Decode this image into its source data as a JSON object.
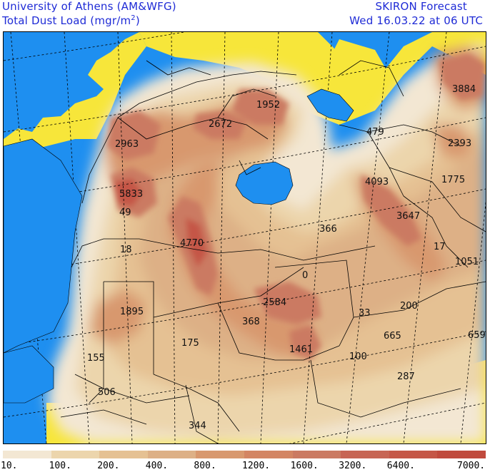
{
  "header": {
    "line1_left": "University of Athens (AM&WFG)",
    "line2_left_prefix": "Total Dust Load (mgr/m",
    "line2_left_sup": "2",
    "line2_left_suffix": ")",
    "line1_right": "SKIRON Forecast",
    "line2_right": "Wed 16.03.22 at 06 UTC"
  },
  "colors": {
    "sea": "#1e8ff0",
    "land_nodata": "#f7e63a",
    "border": "#000000",
    "grid": "#000000"
  },
  "legend": {
    "colors": [
      "#f3e7d3",
      "#ecd5ac",
      "#e5c193",
      "#ddb086",
      "#d8986e",
      "#d38563",
      "#cb7a62",
      "#c76554",
      "#c55747",
      "#c04a3d"
    ],
    "labels": [
      "10.",
      "100.",
      "200.",
      "400.",
      "800.",
      "1200.",
      "1600.",
      "3200.",
      "6400.",
      "7000."
    ]
  },
  "map_labels": [
    {
      "id": "v3884",
      "text": "3884"
    },
    {
      "id": "v1952",
      "text": "1952"
    },
    {
      "id": "v2672",
      "text": "2672"
    },
    {
      "id": "v479",
      "text": "479"
    },
    {
      "id": "v2393",
      "text": "2393"
    },
    {
      "id": "v2963",
      "text": "2963"
    },
    {
      "id": "v4093",
      "text": "4093"
    },
    {
      "id": "v1775",
      "text": "1775"
    },
    {
      "id": "v5833",
      "text": "5833"
    },
    {
      "id": "v49",
      "text": "49"
    },
    {
      "id": "v3647",
      "text": "3647"
    },
    {
      "id": "v366",
      "text": "366"
    },
    {
      "id": "v4770",
      "text": "4770"
    },
    {
      "id": "v17",
      "text": "17"
    },
    {
      "id": "v18",
      "text": "18"
    },
    {
      "id": "v1051",
      "text": "1051"
    },
    {
      "id": "v0",
      "text": "0"
    },
    {
      "id": "v2584",
      "text": "2584"
    },
    {
      "id": "v200",
      "text": "200"
    },
    {
      "id": "v1895",
      "text": "1895"
    },
    {
      "id": "v33",
      "text": "33"
    },
    {
      "id": "v368",
      "text": "368"
    },
    {
      "id": "v659",
      "text": "659"
    },
    {
      "id": "v665",
      "text": "665"
    },
    {
      "id": "v175",
      "text": "175"
    },
    {
      "id": "v1461",
      "text": "1461"
    },
    {
      "id": "v155",
      "text": "155"
    },
    {
      "id": "v100",
      "text": "100"
    },
    {
      "id": "v287",
      "text": "287"
    },
    {
      "id": "v506",
      "text": "506"
    },
    {
      "id": "v344",
      "text": "344"
    }
  ]
}
